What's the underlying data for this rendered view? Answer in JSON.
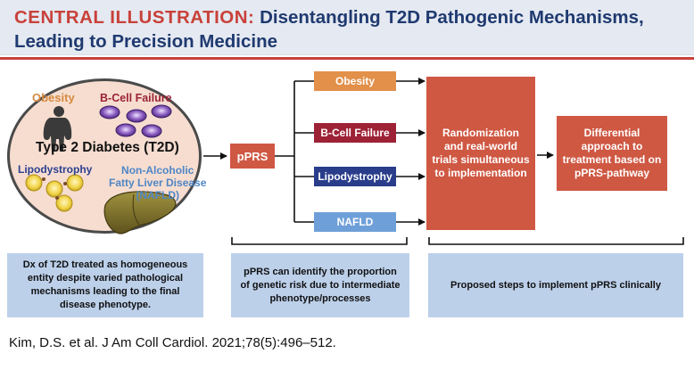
{
  "header": {
    "label": "CENTRAL ILLUSTRATION:",
    "title_line1": "Disentangling T2D Pathogenic Mechanisms,",
    "title_line2": "Leading to Precision Medicine"
  },
  "circle": {
    "obesity": "Obesity",
    "beta_cell": "B-Cell Failure",
    "t2d": "Type 2 Diabetes (T2D)",
    "lipodystrophy": "Lipodystrophy",
    "nafld_line1": "Non-Alcoholic",
    "nafld_line2": "Fatty Liver Disease",
    "nafld_line3": "(NAFLD)"
  },
  "flow": {
    "pprs": "pPRS",
    "branches": [
      "Obesity",
      "B-Cell Failure",
      "Lipodystrophy",
      "NAFLD"
    ],
    "randomization": "Randomization and real-world trials simultaneous to implementation",
    "differential": "Differential approach to treatment based on pPRS-pathway"
  },
  "info": {
    "box1": "Dx of T2D treated as homogeneous entity despite varied pathological mechanisms leading to the final disease phenotype.",
    "box2": "pPRS can identify the proportion of genetic risk due to intermediate phenotype/processes",
    "box3": "Proposed steps to implement pPRS clinically"
  },
  "citation": "Kim, D.S. et al. J Am Coll Cardiol. 2021;78(5):496–512.",
  "colors": {
    "header_bg": "#e5e9f1",
    "accent_red": "#c8413a",
    "title_blue": "#1f3a70",
    "obesity": "#e2904a",
    "beta_cell": "#9e2236",
    "lipodystrophy": "#2a3d8b",
    "nafld": "#6e9fd8",
    "info_bg": "#bcd0ea",
    "circle_bg": "#f6ddd0"
  },
  "icons": [
    "person-silhouette-icon",
    "beta-cell-icon",
    "fat-cell-icon",
    "liver-icon",
    "arrow-icon"
  ]
}
